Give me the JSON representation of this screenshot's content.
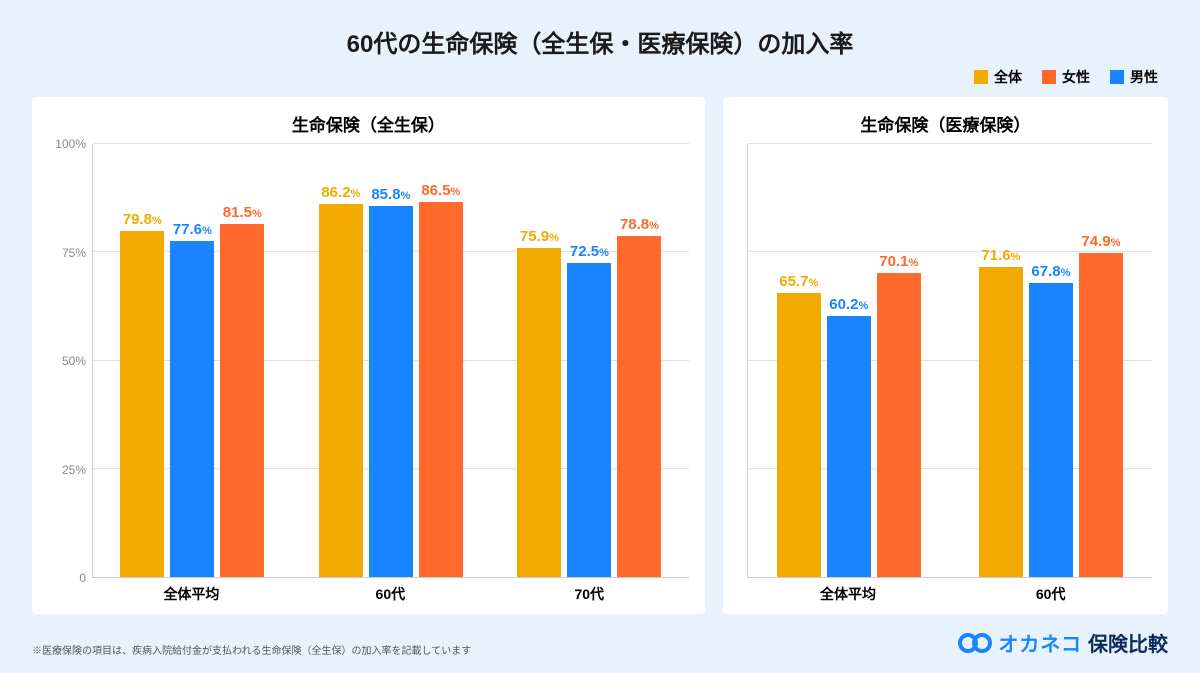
{
  "background_color": "#e8f2fc",
  "title": "60代の生命保険（全生保・医療保険）の加入率",
  "title_color": "#1a1a1a",
  "series_colors": {
    "total": "#f2a900",
    "male": "#1884ff",
    "female": "#ff6a2b"
  },
  "legend": [
    {
      "key": "total",
      "label": "全体"
    },
    {
      "key": "female",
      "label": "女性"
    },
    {
      "key": "male",
      "label": "男性"
    }
  ],
  "ylim": [
    0,
    100
  ],
  "yticks": [
    0,
    25,
    50,
    75,
    100
  ],
  "ytick_suffix": "%",
  "grid_color": "#e0e0e0",
  "panel_bg": "#ffffff",
  "panels": [
    {
      "id": "life",
      "title": "生命保険（全生保）",
      "categories": [
        "全体平均",
        "60代",
        "70代"
      ],
      "bars": [
        [
          {
            "series": "total",
            "value": 79.8
          },
          {
            "series": "male",
            "value": 77.6
          },
          {
            "series": "female",
            "value": 81.5
          }
        ],
        [
          {
            "series": "total",
            "value": 86.2
          },
          {
            "series": "male",
            "value": 85.8
          },
          {
            "series": "female",
            "value": 86.5
          }
        ],
        [
          {
            "series": "total",
            "value": 75.9
          },
          {
            "series": "male",
            "value": 72.5
          },
          {
            "series": "female",
            "value": 78.8
          }
        ]
      ]
    },
    {
      "id": "medical",
      "title": "生命保険（医療保険）",
      "categories": [
        "全体平均",
        "60代"
      ],
      "bars": [
        [
          {
            "series": "total",
            "value": 65.7
          },
          {
            "series": "male",
            "value": 60.2
          },
          {
            "series": "female",
            "value": 70.1
          }
        ],
        [
          {
            "series": "total",
            "value": 71.6
          },
          {
            "series": "male",
            "value": 67.8
          },
          {
            "series": "female",
            "value": 74.9
          }
        ]
      ]
    }
  ],
  "footnote": "※医療保険の項目は、疾病入院給付金が支払われる生命保険（全生保）の加入率を記載しています",
  "brand": {
    "logo_color": "#1884ff",
    "main": "オカネコ",
    "main_color": "#1884ff",
    "sub": "保険比較",
    "sub_color": "#0a2b5c"
  }
}
